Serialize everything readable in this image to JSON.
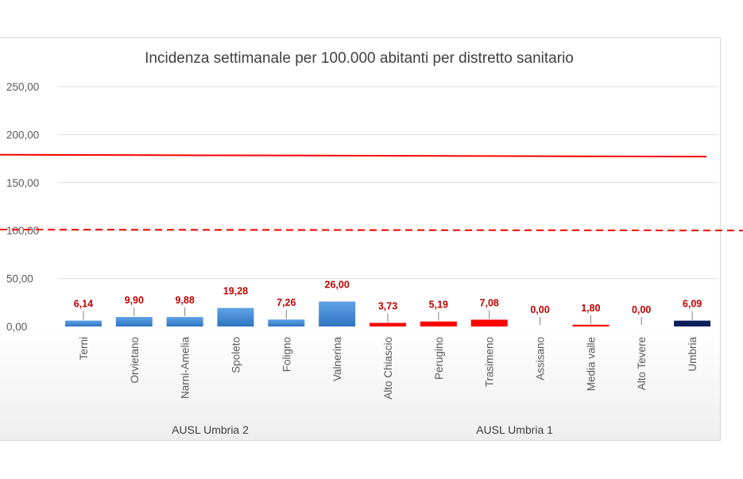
{
  "chart_data": {
    "type": "bar",
    "title": "Incidenza settimanale per 100.000 abitanti per distretto sanitario",
    "xlabel": "",
    "ylabel": "",
    "ylim": [
      0,
      250
    ],
    "yticks": [
      "0,00",
      "50,00",
      "100,00",
      "150,00",
      "200,00",
      "250,00"
    ],
    "ytick_values": [
      0,
      50,
      100,
      150,
      200,
      250
    ],
    "grid": true,
    "categories": [
      "Terni",
      "Orvietano",
      "Narni-Amelia",
      "Spoleto",
      "Foligno",
      "Valnerina",
      "Alto Chiascio",
      "Perugino",
      "Trasimeno",
      "Assisano",
      "Media valle",
      "Alto Tevere",
      "Umbria"
    ],
    "values": [
      6.14,
      9.9,
      9.88,
      19.28,
      7.26,
      26.0,
      3.73,
      5.19,
      7.08,
      0.0,
      1.8,
      0.0,
      6.09
    ],
    "value_labels": [
      "6,14",
      "9,90",
      "9,88",
      "19,28",
      "7,26",
      "26,00",
      "3,73",
      "5,19",
      "7,08",
      "0,00",
      "1,80",
      "0,00",
      "6,09"
    ],
    "bar_colors": [
      "#4a8fd6",
      "#4a8fd6",
      "#4a8fd6",
      "#4a8fd6",
      "#4a8fd6",
      "#4a8fd6",
      "#ff0000",
      "#ff0000",
      "#ff0000",
      "#ff0000",
      "#ff0000",
      "#ff0000",
      "#0b1f5c"
    ],
    "groups": [
      {
        "label": "AUSL Umbria 2",
        "from": 0,
        "to": 5
      },
      {
        "label": "AUSL Umbria 1",
        "from": 6,
        "to": 11
      }
    ],
    "reference_lines": [
      {
        "value_start": 179,
        "value_end": 177,
        "style": "solid",
        "color": "#ff0000"
      },
      {
        "value_start": 101,
        "value_end": 100,
        "style": "dashed",
        "color": "#ff0000"
      }
    ],
    "colors": {
      "label_red": "#c00000",
      "grid": "#d9d9d9",
      "text": "#595959"
    }
  }
}
